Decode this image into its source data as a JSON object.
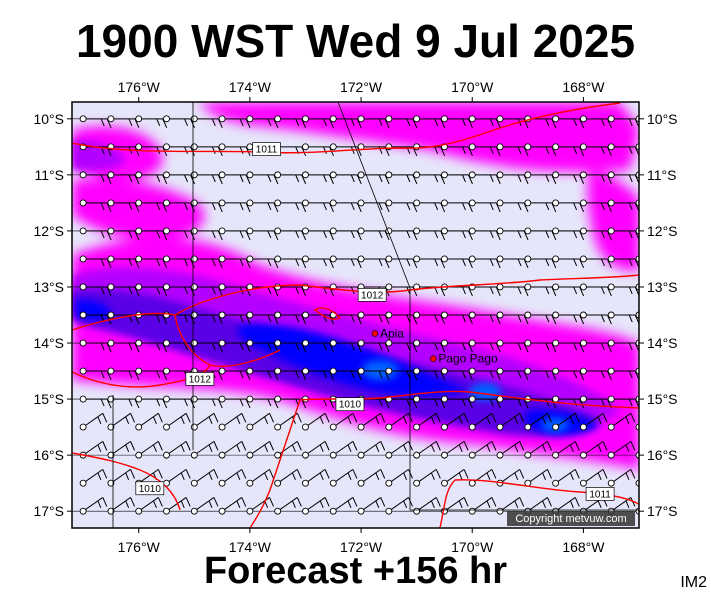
{
  "title": "1900 WST Wed 9 Jul 2025",
  "forecast_label": "Forecast +156 hr",
  "product_code": "IM2",
  "copyright": "Copyright metvuw.com",
  "map": {
    "lon_range": [
      -177.2,
      -167.0
    ],
    "lat_range": [
      -17.3,
      -9.7
    ],
    "lon_ticks": [
      {
        "value": -176,
        "label": "176°W"
      },
      {
        "value": -174,
        "label": "174°W"
      },
      {
        "value": -172,
        "label": "172°W"
      },
      {
        "value": -170,
        "label": "170°W"
      },
      {
        "value": -168,
        "label": "168°W"
      }
    ],
    "lat_ticks": [
      {
        "value": -10,
        "label": "10°S"
      },
      {
        "value": -11,
        "label": "11°S"
      },
      {
        "value": -12,
        "label": "12°S"
      },
      {
        "value": -13,
        "label": "13°S"
      },
      {
        "value": -14,
        "label": "14°S"
      },
      {
        "value": -15,
        "label": "15°S"
      },
      {
        "value": -16,
        "label": "16°S"
      },
      {
        "value": -17,
        "label": "17°S"
      }
    ],
    "places": [
      {
        "name": "Apia",
        "lon": -171.75,
        "lat": -13.83
      },
      {
        "name": "Pago Pago",
        "lon": -170.7,
        "lat": -14.28
      }
    ],
    "isobar_labels": [
      {
        "text": "1011",
        "lon": -173.7,
        "lat": -10.55
      },
      {
        "text": "1012",
        "lon": -171.8,
        "lat": -13.15
      },
      {
        "text": "1012",
        "lon": -174.9,
        "lat": -14.65
      },
      {
        "text": "1010",
        "lon": -172.2,
        "lat": -15.1
      },
      {
        "text": "1010",
        "lon": -175.8,
        "lat": -16.6
      },
      {
        "text": "1011",
        "lon": -167.7,
        "lat": -16.7
      }
    ],
    "colors": {
      "background": "#e6e6fa",
      "rain_light": "#ff00ff",
      "rain_medium": "#b400ff",
      "rain_heavy": "#5a00e6",
      "rain_very_heavy": "#0000ff",
      "rain_intense": "#0064ff",
      "isobar": "#ff0000",
      "wind": "#000000"
    },
    "wind_barb_spacing_deg": 0.5
  }
}
